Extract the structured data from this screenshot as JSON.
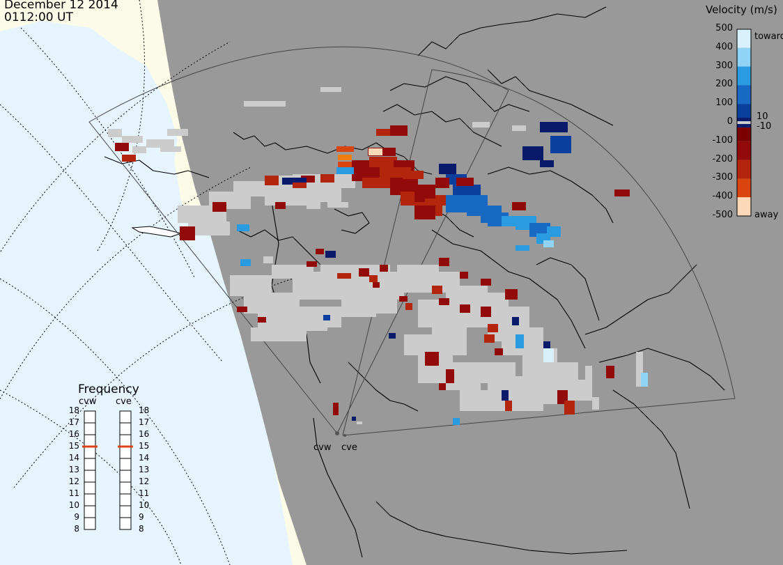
{
  "timestamp": {
    "date": "December 12 2014",
    "time": "0112:00 UT"
  },
  "colors": {
    "ocean": "#e6f5fd",
    "land": "#fbfbe8",
    "night_shade": "#999999",
    "ionospheric_scatter_gray": "#cccccc",
    "ground_scatter_gray": "#a3a3a3",
    "coastline": "#000000",
    "frequency_marker": "#d84315"
  },
  "velocity_colorbar": {
    "title": "Velocity (m/s)",
    "ticks": [
      "500",
      "400",
      "300",
      "200",
      "100",
      "10",
      "0",
      "-10",
      "-100",
      "-200",
      "-300",
      "-400",
      "-500"
    ],
    "toward_label": "toward",
    "away_label": "away",
    "color_scale": [
      {
        "value": 500,
        "color": "#d8f0fb"
      },
      {
        "value": 400,
        "color": "#8fd3f6"
      },
      {
        "value": 300,
        "color": "#2a9be0"
      },
      {
        "value": 200,
        "color": "#1769c4"
      },
      {
        "value": 100,
        "color": "#0b3f9e"
      },
      {
        "value": 10,
        "color": "#0a1a6b"
      },
      {
        "value": -10,
        "color": "#7a0000"
      },
      {
        "value": -100,
        "color": "#930a0a"
      },
      {
        "value": -200,
        "color": "#b3250c"
      },
      {
        "value": -300,
        "color": "#d8450f"
      },
      {
        "value": -400,
        "color": "#ef7d12"
      },
      {
        "value": -500,
        "color": "#fbd9b8"
      }
    ]
  },
  "frequency_panel": {
    "title": "Frequency",
    "radars": [
      {
        "name": "cvw",
        "frequency_mhz": 15
      },
      {
        "name": "cve",
        "frequency_mhz": 15
      }
    ],
    "ticks": [
      "18",
      "17",
      "16",
      "15",
      "14",
      "13",
      "12",
      "11",
      "10",
      "9",
      "8"
    ]
  },
  "radar_sites": [
    {
      "name": "cvw"
    },
    {
      "name": "cve"
    }
  ]
}
